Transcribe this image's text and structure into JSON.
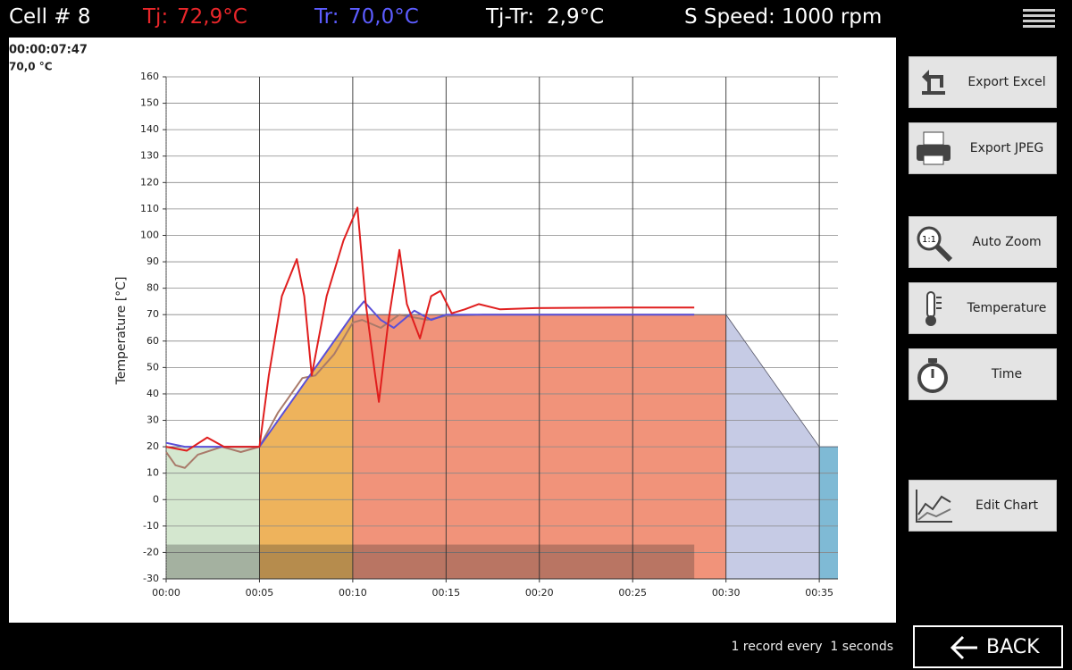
{
  "header": {
    "cell": "Cell # 8",
    "tj_label": "Tj:",
    "tj_value": "72,9°C",
    "tr_label": "Tr:",
    "tr_value": "70,0°C",
    "diff_label": "Tj-Tr:",
    "diff_value": "2,9°C",
    "speed_label": "S Speed:",
    "speed_value": "1000 rpm"
  },
  "chart_data": {
    "type": "line",
    "elapsed": "00:00:07:47",
    "cursor_value": "70,0 °C",
    "y_label": "Temperature [°C]",
    "xlim": [
      0,
      36
    ],
    "ylim": [
      -30,
      160
    ],
    "xticks": [
      {
        "value": 0,
        "label": "00:00"
      },
      {
        "value": 5,
        "label": "00:05"
      },
      {
        "value": 10,
        "label": "00:10"
      },
      {
        "value": 15,
        "label": "00:15"
      },
      {
        "value": 20,
        "label": "00:20"
      },
      {
        "value": 25,
        "label": "00:25"
      },
      {
        "value": 30,
        "label": "00:30"
      },
      {
        "value": 35,
        "label": "00:35"
      }
    ],
    "yticks": [
      -30,
      -20,
      -10,
      0,
      10,
      20,
      30,
      40,
      50,
      60,
      70,
      80,
      90,
      100,
      110,
      120,
      130,
      140,
      150,
      160
    ],
    "grid": true,
    "profile": {
      "x": [
        0,
        5,
        10,
        30,
        35,
        36
      ],
      "values": [
        20,
        20,
        70,
        70,
        20,
        20
      ],
      "colors": [
        "#d4e7cf",
        "#eeb35c",
        "#f1937a",
        "#c6cbe5",
        "#7fbad5"
      ]
    },
    "recorded_band": {
      "xlim": [
        0,
        28.3
      ],
      "ylim": [
        -30,
        -17
      ],
      "color": "rgba(40,40,40,0.28)"
    },
    "series": [
      {
        "color": "#a97a6a",
        "x": [
          0,
          0.5,
          1,
          1.7,
          3,
          4,
          5,
          6,
          7.3,
          8,
          9,
          10,
          10.5,
          11.5,
          12.5,
          14,
          15,
          17,
          28.3
        ],
        "values": [
          18,
          13,
          12,
          17,
          20,
          18,
          20,
          33,
          46,
          47,
          55,
          67,
          68,
          65,
          70,
          68,
          69.5,
          70,
          70
        ]
      },
      {
        "color": "#5a4fd8",
        "x": [
          0,
          1,
          5,
          7.5,
          10,
          10.6,
          11.5,
          12.2,
          13.3,
          14.2,
          15,
          28.3
        ],
        "values": [
          21.5,
          20,
          20,
          45,
          70,
          75,
          68,
          65,
          71.5,
          68,
          70,
          70
        ]
      },
      {
        "color": "#e01e1e",
        "x": [
          0,
          1.1,
          2.2,
          3.1,
          5,
          5.5,
          6.2,
          7,
          7.4,
          7.8,
          8.6,
          9.5,
          10.25,
          10.7,
          11.2,
          11.4,
          11.9,
          12.5,
          12.9,
          13.6,
          14.2,
          14.7,
          15.3,
          16,
          16.75,
          17.9,
          19.8,
          24.6,
          28.3
        ],
        "values": [
          20,
          18.5,
          23.5,
          20,
          20,
          47,
          77,
          91,
          77,
          47,
          77,
          98,
          110.5,
          74,
          47,
          37,
          67,
          94.5,
          74,
          61,
          77,
          79,
          70.5,
          72,
          74,
          72,
          72.5,
          72.7,
          72.7
        ]
      }
    ]
  },
  "buttons": [
    "Export Excel",
    "Export JPEG",
    "Auto Zoom",
    "Temperature",
    "Time",
    "Edit Chart"
  ],
  "footer": {
    "record_info": "1 record every  1 seconds",
    "back": "BACK"
  }
}
